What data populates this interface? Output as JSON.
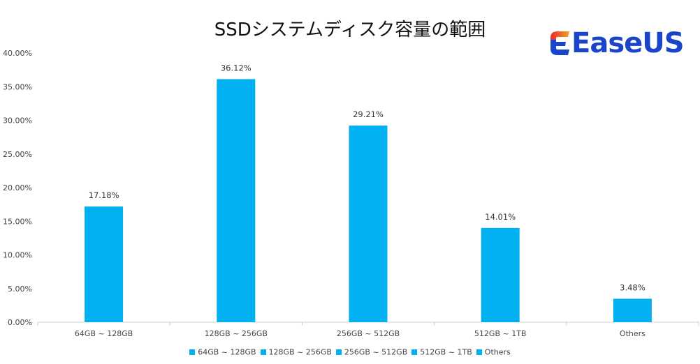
{
  "chart_data": {
    "type": "bar",
    "title": "SSDシステムディスク容量の範囲",
    "categories": [
      "64GB ~ 128GB",
      "128GB ~ 256GB",
      "256GB ~ 512GB",
      "512GB ~ 1TB",
      "Others"
    ],
    "values": [
      17.18,
      36.12,
      29.21,
      14.01,
      3.48
    ],
    "data_labels": [
      "17.18%",
      "36.12%",
      "29.21%",
      "14.01%",
      "3.48%"
    ],
    "y_ticks": [
      "0.00%",
      "5.00%",
      "10.00%",
      "15.00%",
      "20.00%",
      "25.00%",
      "30.00%",
      "35.00%",
      "40.00%"
    ],
    "ylim": [
      0,
      40
    ],
    "grid": false,
    "legend_position": "bottom",
    "legend": [
      "64GB ~ 128GB",
      "128GB ~ 256GB",
      "256GB ~ 512GB",
      "512GB ~ 1TB",
      "Others"
    ],
    "bar_color": "#00b0f0"
  },
  "logo": {
    "text": "EaseUS",
    "colors": {
      "blue": "#1a45c8",
      "orange": "#f5671e",
      "red": "#e8292d"
    }
  }
}
